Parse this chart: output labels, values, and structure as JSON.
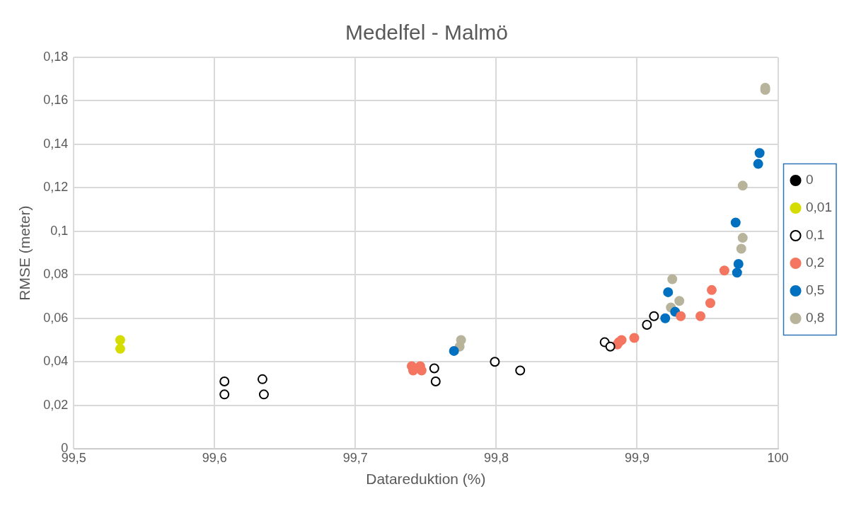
{
  "chart_data": {
    "type": "scatter",
    "title": "Medelfel - Malmö",
    "xlabel": "Datareduktion (%)",
    "ylabel": "RMSE (meter)",
    "xlim": [
      99.5,
      100
    ],
    "xticks": [
      {
        "value": 99.5,
        "label": "99,5"
      },
      {
        "value": 99.6,
        "label": "99,6"
      },
      {
        "value": 99.7,
        "label": "99,7"
      },
      {
        "value": 99.8,
        "label": "99,8"
      },
      {
        "value": 99.9,
        "label": "99,9"
      },
      100
    ],
    "ylim": [
      0,
      0.18
    ],
    "yticks": [
      0,
      {
        "value": 0.02,
        "label": "0,02"
      },
      {
        "value": 0.04,
        "label": "0,04"
      },
      {
        "value": 0.06,
        "label": "0,06"
      },
      {
        "value": 0.08,
        "label": "0,08"
      },
      {
        "value": 0.1,
        "label": "0,1"
      },
      {
        "value": 0.12,
        "label": "0,12"
      },
      {
        "value": 0.14,
        "label": "0,14"
      },
      {
        "value": 0.16,
        "label": "0,16"
      },
      {
        "value": 0.18,
        "label": "0,18"
      }
    ],
    "grid": true,
    "legend": "right",
    "marker": "circle",
    "series": [
      {
        "name": "0",
        "color": "#000000"
      },
      {
        "name": "0,01",
        "color": "#d4dc00",
        "x": [
          99.533,
          99.533
        ],
        "values": [
          0.05,
          0.046
        ]
      },
      {
        "name": "0,1",
        "color": "#ffffff",
        "x": [
          99.607,
          99.607,
          99.634,
          99.635,
          99.756,
          99.757,
          99.799,
          99.817,
          99.877,
          99.881,
          99.907,
          99.912
        ],
        "values": [
          0.031,
          0.025,
          0.032,
          0.025,
          0.037,
          0.031,
          0.04,
          0.036,
          0.049,
          0.047,
          0.057,
          0.061
        ]
      },
      {
        "name": "0,2",
        "color": "#f47560",
        "x": [
          99.74,
          99.741,
          99.746,
          99.747,
          99.886,
          99.887,
          99.889,
          99.898,
          99.931,
          99.945,
          99.952,
          99.953,
          99.962
        ],
        "values": [
          0.038,
          0.036,
          0.038,
          0.036,
          0.048,
          0.049,
          0.05,
          0.051,
          0.061,
          0.061,
          0.067,
          0.073,
          0.082
        ]
      },
      {
        "name": "0,5",
        "color": "#0070c0",
        "x": [
          99.77,
          99.92,
          99.922,
          99.927,
          99.97,
          99.971,
          99.972,
          99.986,
          99.987
        ],
        "values": [
          0.045,
          0.06,
          0.072,
          0.063,
          0.104,
          0.081,
          0.085,
          0.131,
          0.136
        ]
      },
      {
        "name": "0,8",
        "color": "#b8b49c",
        "x": [
          99.774,
          99.775,
          99.924,
          99.925,
          99.93,
          99.974,
          99.975,
          99.975,
          99.991,
          99.991
        ],
        "values": [
          0.047,
          0.05,
          0.065,
          0.078,
          0.068,
          0.092,
          0.097,
          0.121,
          0.166,
          0.165
        ]
      }
    ]
  }
}
